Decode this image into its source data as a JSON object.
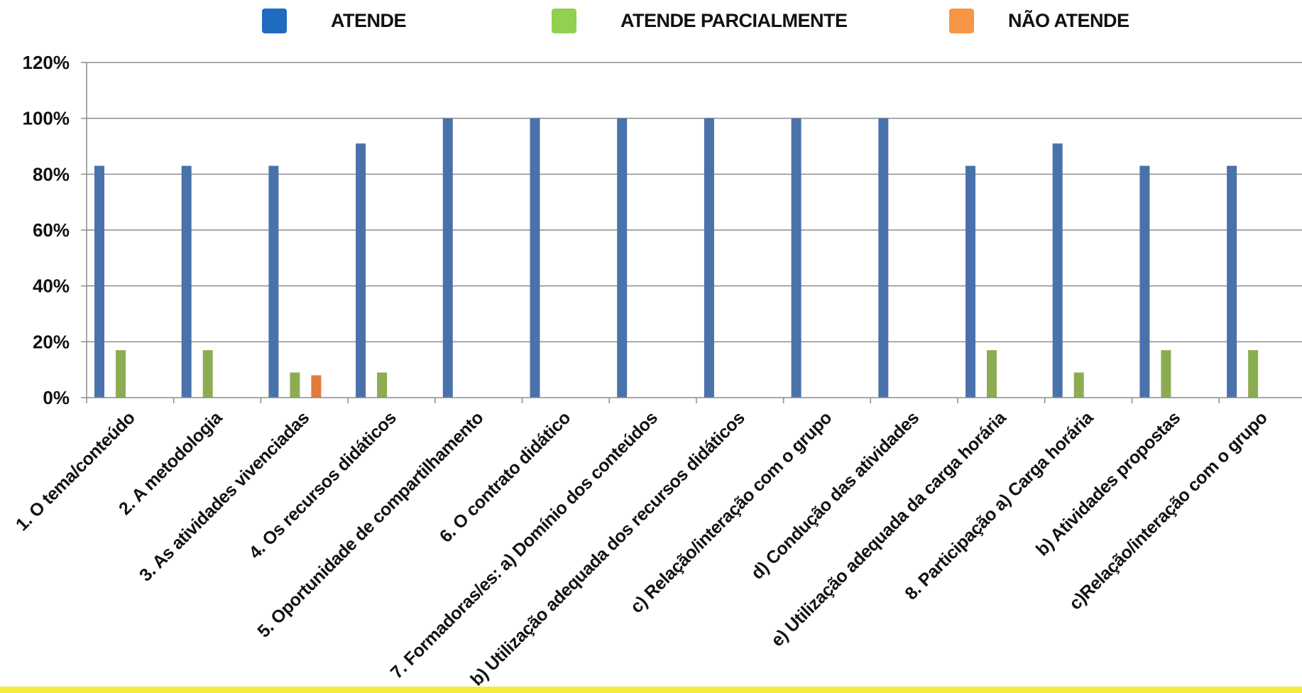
{
  "chart_data": {
    "type": "bar",
    "title": "",
    "xlabel": "",
    "ylabel": "",
    "ylim": [
      0,
      1.2
    ],
    "y_ticks": [
      "0%",
      "20%",
      "40%",
      "60%",
      "80%",
      "100%",
      "120%"
    ],
    "grid": true,
    "legend_position": "top",
    "categories": [
      "1. O tema/conteúdo",
      "2. A metodologia",
      "3. As atividades vivenciadas",
      "4. Os recursos didáticos",
      "5. Oportunidade de compartilhamento",
      "6. O contrato didático",
      "7. Formadoras/es: a) Domínio dos conteúdos",
      "b) Utilização adequada dos recursos didáticos",
      "c) Relação/interação com o grupo",
      "d) Condução das atividades",
      "e) Utilização adequada da carga horária",
      "8. Participação a) Carga horária",
      "b) Atividades propostas",
      "c)Relação/interação com o grupo"
    ],
    "series": [
      {
        "name": "ATENDE",
        "color": "#4a72aa",
        "values": [
          0.83,
          0.83,
          0.83,
          0.91,
          1.0,
          1.0,
          1.0,
          1.0,
          1.0,
          1.0,
          0.83,
          0.91,
          0.83,
          0.83
        ]
      },
      {
        "name": "ATENDE PARCIALMENTE",
        "color": "#8cac52",
        "values": [
          0.17,
          0.17,
          0.09,
          0.09,
          0,
          0,
          0,
          0,
          0,
          0,
          0.17,
          0.09,
          0.17,
          0.17
        ]
      },
      {
        "name": "NÃO ATENDE",
        "color": "#e07b39",
        "values": [
          0,
          0,
          0.08,
          0,
          0,
          0,
          0,
          0,
          0,
          0,
          0,
          0,
          0,
          0
        ]
      }
    ]
  },
  "legend": {
    "items": [
      {
        "label": "ATENDE",
        "swatch_color": "#1f6bc0"
      },
      {
        "label": "ATENDE PARCIALMENTE",
        "swatch_color": "#92d050"
      },
      {
        "label": "NÃO ATENDE",
        "swatch_color": "#f79646"
      }
    ]
  },
  "colors": {
    "grid": "#8c8c8c",
    "axis": "#8c8c8c",
    "bottom_bar": "#f5e93b"
  }
}
